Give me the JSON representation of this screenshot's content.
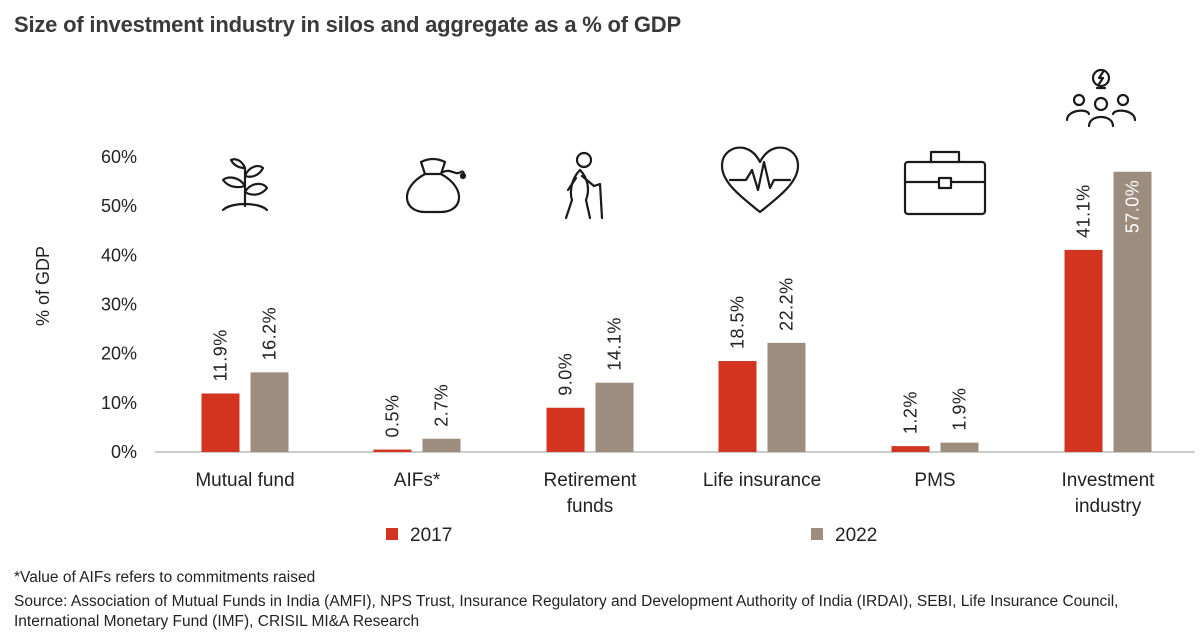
{
  "chart_data": {
    "type": "bar",
    "title": "Size of investment industry in silos and aggregate as a % of GDP",
    "ylabel": "% of GDP",
    "xlabel": "",
    "ylim": [
      0,
      60
    ],
    "yticks": [
      0,
      10,
      20,
      30,
      40,
      50,
      60
    ],
    "ytick_labels": [
      "0%",
      "10%",
      "20%",
      "30%",
      "40%",
      "50%",
      "60%"
    ],
    "categories": [
      [
        "Mutual fund"
      ],
      [
        "AIFs*"
      ],
      [
        "Retirement",
        "funds"
      ],
      [
        "Life insurance"
      ],
      [
        "PMS"
      ],
      [
        "Investment",
        "industry"
      ]
    ],
    "series": [
      {
        "name": "2017",
        "color": "#d23420",
        "values": [
          11.9,
          0.5,
          9.0,
          18.5,
          1.2,
          41.1
        ],
        "labels": [
          "11.9%",
          "0.5%",
          "9.0%",
          "18.5%",
          "1.2%",
          "41.1%"
        ]
      },
      {
        "name": "2022",
        "color": "#9d8d7e",
        "values": [
          16.2,
          2.7,
          14.1,
          22.2,
          1.9,
          57.0
        ],
        "labels": [
          "16.2%",
          "2.7%",
          "14.1%",
          "22.2%",
          "1.9%",
          "57.0%"
        ]
      }
    ],
    "icons": [
      "plant-icon",
      "money-bag-icon",
      "elderly-person-icon",
      "heartbeat-icon",
      "briefcase-icon",
      "people-idea-icon"
    ],
    "legend_position": "bottom"
  },
  "footnotes": {
    "note": "*Value of AIFs refers to commitments raised",
    "source": "Source: Association of Mutual Funds in India (AMFI), NPS Trust, Insurance Regulatory and Development Authority of India (IRDAI), SEBI, Life Insurance Council, International Monetary Fund (IMF), CRISIL MI&A Research"
  }
}
